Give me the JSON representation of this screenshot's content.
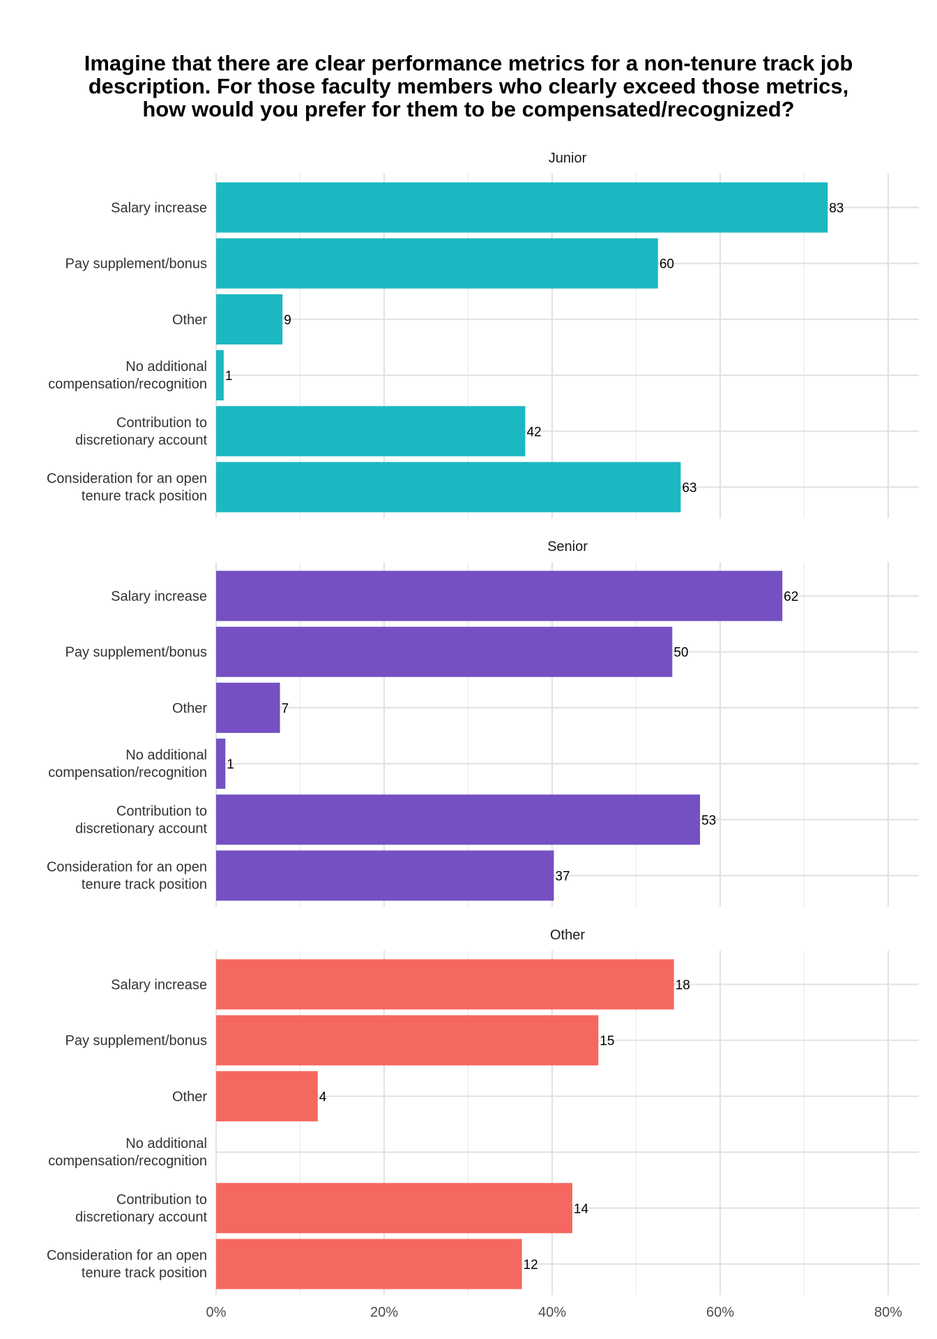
{
  "chart_data": {
    "type": "bar",
    "orientation": "horizontal",
    "title_lines": [
      "Imagine that there are clear performance metrics for a non-tenure track job",
      "description. For those faculty members who clearly exceed those metrics,",
      "how would you prefer for them to be compensated/recognized?"
    ],
    "categories": [
      "Salary increase",
      "Pay supplement/bonus",
      "Other",
      "No additional\ncompensation/recognition",
      "Contribution to\ndiscretionary account",
      "Consideration for an open\ntenure track position"
    ],
    "x_axis": {
      "min": 0,
      "max": 0.8,
      "tick_values": [
        0,
        0.2,
        0.4,
        0.6,
        0.8
      ],
      "tick_labels": [
        "0%",
        "20%",
        "40%",
        "60%",
        "80%"
      ],
      "units": "share of respondents"
    },
    "grid": true,
    "legend": "none",
    "panels": [
      {
        "name": "Junior",
        "color": "#1BB8C2",
        "shares": [
          0.728,
          0.526,
          0.079,
          0.009,
          0.368,
          0.553
        ],
        "counts": [
          "83",
          "60",
          "9",
          "1",
          "42",
          "63"
        ]
      },
      {
        "name": "Senior",
        "color": "#7450C2",
        "shares": [
          0.674,
          0.543,
          0.076,
          0.011,
          0.576,
          0.402
        ],
        "counts": [
          "62",
          "50",
          "7",
          "1",
          "53",
          "37"
        ]
      },
      {
        "name": "Other",
        "color": "#F5685F",
        "shares": [
          0.545,
          0.455,
          0.121,
          0,
          0.424,
          0.364
        ],
        "counts": [
          "18",
          "15",
          "4",
          "",
          "14",
          "12"
        ]
      }
    ]
  }
}
